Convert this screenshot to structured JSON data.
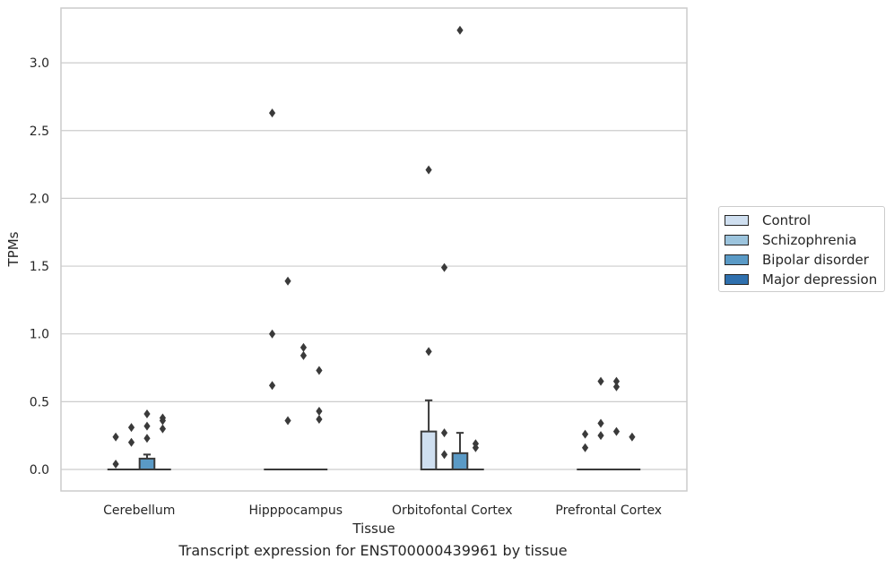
{
  "caption": "Transcript expression for ENST00000439961 by tissue",
  "colors": {
    "background": "#ffffff",
    "grid": "#cccccc",
    "axis_frame": "#cccccc",
    "ink": "#3a3a3a",
    "text": "#262626"
  },
  "chart_data": {
    "type": "box",
    "title": "",
    "xlabel": "Tissue",
    "ylabel": "TPMs",
    "ylim": [
      -0.16,
      3.41
    ],
    "yticks": [
      0.0,
      0.5,
      1.0,
      1.5,
      2.0,
      2.5,
      3.0
    ],
    "ytick_labels": [
      "0.0",
      "0.5",
      "1.0",
      "1.5",
      "2.0",
      "2.5",
      "3.0"
    ],
    "grid": "horizontal",
    "legend_position": "right, outside plot",
    "categories": [
      "Cerebellum",
      "Hipppocampus",
      "Orbitofontal Cortex",
      "Prefrontal Cortex"
    ],
    "series": [
      {
        "name": "Control",
        "color": "#cfdff0",
        "boxes": [
          {
            "q1": 0,
            "median": 0,
            "q3": 0,
            "whisker_low": 0,
            "whisker_high": 0,
            "outliers": [
              0.24,
              0.04
            ]
          },
          {
            "q1": 0,
            "median": 0,
            "q3": 0,
            "whisker_low": 0,
            "whisker_high": 0,
            "outliers": [
              2.63,
              1.0,
              0.62
            ]
          },
          {
            "q1": 0,
            "median": 0,
            "q3": 0.28,
            "whisker_low": 0,
            "whisker_high": 0.51,
            "outliers": [
              2.21,
              0.87
            ]
          },
          {
            "q1": 0,
            "median": 0,
            "q3": 0,
            "whisker_low": 0,
            "whisker_high": 0,
            "outliers": [
              0.26,
              0.16
            ]
          }
        ]
      },
      {
        "name": "Schizophrenia",
        "color": "#9cc4dd",
        "boxes": [
          {
            "q1": 0,
            "median": 0,
            "q3": 0,
            "whisker_low": 0,
            "whisker_high": 0,
            "outliers": [
              0.31,
              0.2
            ]
          },
          {
            "q1": 0,
            "median": 0,
            "q3": 0,
            "whisker_low": 0,
            "whisker_high": 0,
            "outliers": [
              1.39,
              0.36
            ]
          },
          {
            "q1": 0,
            "median": 0,
            "q3": 0,
            "whisker_low": 0,
            "whisker_high": 0,
            "outliers": [
              1.49,
              0.27,
              0.11
            ]
          },
          {
            "q1": 0,
            "median": 0,
            "q3": 0,
            "whisker_low": 0,
            "whisker_high": 0,
            "outliers": [
              0.65,
              0.34,
              0.25
            ]
          }
        ]
      },
      {
        "name": "Bipolar disorder",
        "color": "#5a9ac6",
        "boxes": [
          {
            "q1": 0,
            "median": 0,
            "q3": 0.08,
            "whisker_low": 0,
            "whisker_high": 0.11,
            "outliers": [
              0.41,
              0.32,
              0.23
            ]
          },
          {
            "q1": 0,
            "median": 0,
            "q3": 0,
            "whisker_low": 0,
            "whisker_high": 0,
            "outliers": [
              0.9,
              0.84
            ]
          },
          {
            "q1": 0,
            "median": 0,
            "q3": 0.12,
            "whisker_low": 0,
            "whisker_high": 0.27,
            "outliers": [
              3.24
            ]
          },
          {
            "q1": 0,
            "median": 0,
            "q3": 0,
            "whisker_low": 0,
            "whisker_high": 0,
            "outliers": [
              0.65,
              0.61,
              0.28
            ]
          }
        ]
      },
      {
        "name": "Major depression",
        "color": "#2f70ae",
        "boxes": [
          {
            "q1": 0,
            "median": 0,
            "q3": 0,
            "whisker_low": 0,
            "whisker_high": 0,
            "outliers": [
              0.38,
              0.36,
              0.3
            ]
          },
          {
            "q1": 0,
            "median": 0,
            "q3": 0,
            "whisker_low": 0,
            "whisker_high": 0,
            "outliers": [
              0.73,
              0.43,
              0.37
            ]
          },
          {
            "q1": 0,
            "median": 0,
            "q3": 0,
            "whisker_low": 0,
            "whisker_high": 0,
            "outliers": [
              0.19,
              0.16
            ]
          },
          {
            "q1": 0,
            "median": 0,
            "q3": 0,
            "whisker_low": 0,
            "whisker_high": 0,
            "outliers": [
              0.24
            ]
          }
        ]
      }
    ]
  }
}
